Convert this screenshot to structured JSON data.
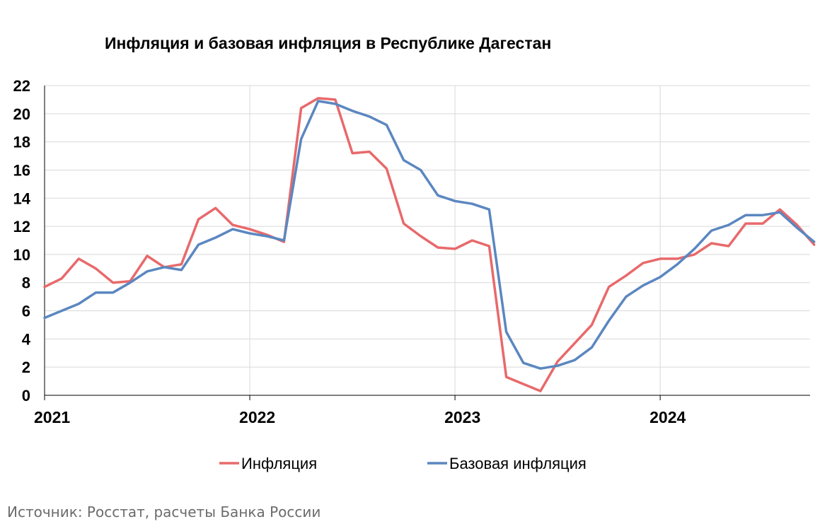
{
  "chart_data": {
    "type": "line",
    "title": "Инфляция и базовая инфляция в Республике Дагестан",
    "xlabel": "",
    "ylabel": "",
    "ylim": [
      0,
      22
    ],
    "yticks": [
      0,
      2,
      4,
      6,
      8,
      10,
      12,
      14,
      16,
      18,
      20,
      22
    ],
    "x_tick_labels": [
      "2021",
      "2022",
      "2023",
      "2024"
    ],
    "x_start": "2021-01",
    "x": [
      "2021-01",
      "2021-02",
      "2021-03",
      "2021-04",
      "2021-05",
      "2021-06",
      "2021-07",
      "2021-08",
      "2021-09",
      "2021-10",
      "2021-11",
      "2021-12",
      "2022-01",
      "2022-02",
      "2022-03",
      "2022-04",
      "2022-05",
      "2022-06",
      "2022-07",
      "2022-08",
      "2022-09",
      "2022-10",
      "2022-11",
      "2022-12",
      "2023-01",
      "2023-02",
      "2023-03",
      "2023-04",
      "2023-05",
      "2023-06",
      "2023-07",
      "2023-08",
      "2023-09",
      "2023-10",
      "2023-11",
      "2023-12",
      "2024-01",
      "2024-02",
      "2024-03",
      "2024-04",
      "2024-05",
      "2024-06",
      "2024-07",
      "2024-08",
      "2024-09",
      "2024-10"
    ],
    "grid": true,
    "legend_position": "bottom",
    "series": [
      {
        "name": "Инфляция",
        "color": "#e8696b",
        "values": [
          7.7,
          8.3,
          9.7,
          9.0,
          8.0,
          8.1,
          9.9,
          9.1,
          9.3,
          12.5,
          13.3,
          12.1,
          11.8,
          11.4,
          10.9,
          20.4,
          21.1,
          21.0,
          17.2,
          17.3,
          16.1,
          12.2,
          11.3,
          10.5,
          10.4,
          11.0,
          10.6,
          1.3,
          0.8,
          0.3,
          2.4,
          3.7,
          5.0,
          7.7,
          8.5,
          9.4,
          9.7,
          9.7,
          10.0,
          10.8,
          10.6,
          12.2,
          12.2,
          13.2,
          12.1,
          10.7
        ]
      },
      {
        "name": "Базовая инфляция",
        "color": "#5b87c0",
        "values": [
          5.5,
          6.0,
          6.5,
          7.3,
          7.3,
          8.0,
          8.8,
          9.1,
          8.9,
          10.7,
          11.2,
          11.8,
          11.5,
          11.3,
          11.0,
          18.2,
          20.9,
          20.7,
          20.2,
          19.8,
          19.2,
          16.7,
          16.0,
          14.2,
          13.8,
          13.6,
          13.2,
          4.5,
          2.3,
          1.9,
          2.1,
          2.5,
          3.4,
          5.3,
          7.0,
          7.8,
          8.4,
          9.3,
          10.4,
          11.7,
          12.1,
          12.8,
          12.8,
          13.0,
          11.9,
          10.9
        ]
      }
    ]
  },
  "source_note": "Источник: Росстат, расчеты Банка России"
}
